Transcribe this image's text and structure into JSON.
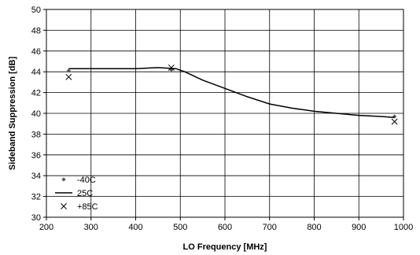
{
  "chart_data": {
    "type": "line",
    "title": "",
    "xlabel": "LO Frequency [MHz]",
    "ylabel": "Sideband Suppression [dB]",
    "xlim": [
      200,
      1000
    ],
    "ylim": [
      30,
      50
    ],
    "xticks": [
      200,
      300,
      400,
      500,
      600,
      700,
      800,
      900,
      1000
    ],
    "yticks": [
      30,
      32,
      34,
      36,
      38,
      40,
      42,
      44,
      46,
      48,
      50
    ],
    "grid": true,
    "legend_position": "bottom-left",
    "series": [
      {
        "name": "-40C",
        "marker": "diamond",
        "color": "#555555",
        "points": [
          [
            250,
            44.1
          ],
          [
            480,
            44.2
          ],
          [
            980,
            39.7
          ]
        ]
      },
      {
        "name": "25C",
        "marker": "line",
        "color": "#000000",
        "points": [
          [
            250,
            44.3
          ],
          [
            300,
            44.3
          ],
          [
            350,
            44.3
          ],
          [
            400,
            44.3
          ],
          [
            450,
            44.4
          ],
          [
            490,
            44.3
          ],
          [
            510,
            44.0
          ],
          [
            550,
            43.2
          ],
          [
            600,
            42.4
          ],
          [
            650,
            41.6
          ],
          [
            700,
            40.9
          ],
          [
            750,
            40.5
          ],
          [
            800,
            40.2
          ],
          [
            850,
            40.0
          ],
          [
            900,
            39.8
          ],
          [
            950,
            39.7
          ],
          [
            980,
            39.6
          ]
        ]
      },
      {
        "name": "+85C",
        "marker": "x",
        "color": "#000000",
        "points": [
          [
            250,
            43.5
          ],
          [
            480,
            44.4
          ],
          [
            980,
            39.2
          ]
        ]
      }
    ]
  }
}
